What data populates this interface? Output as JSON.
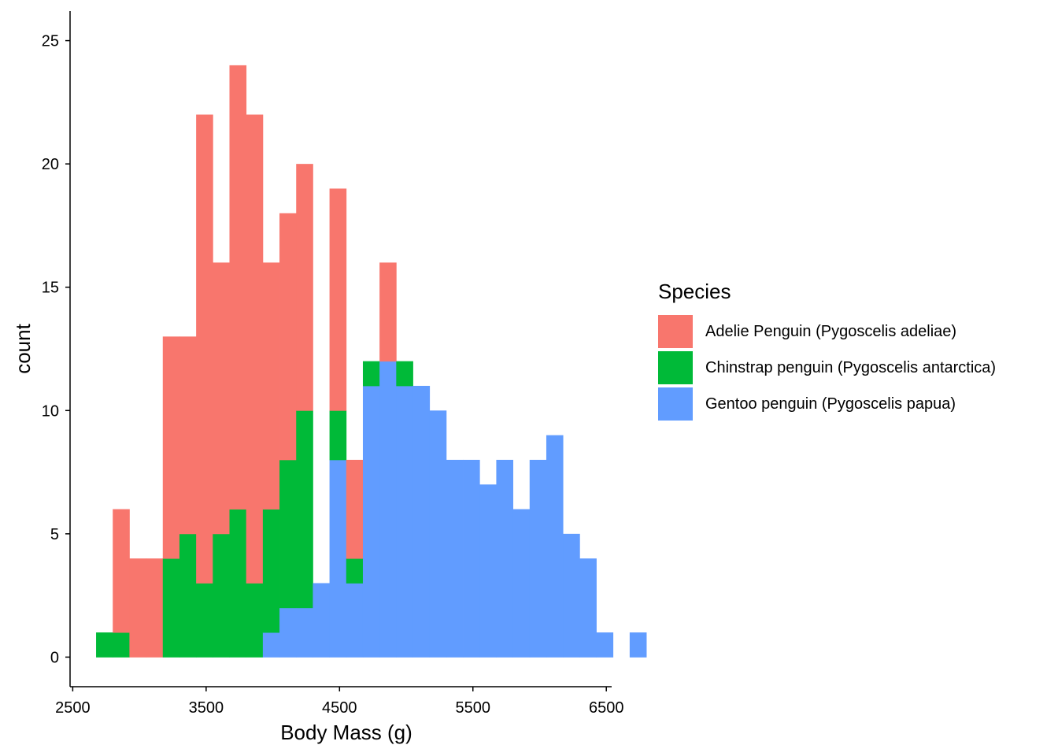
{
  "chart_data": {
    "type": "bar",
    "subtype": "stacked-histogram",
    "xlabel": "Body Mass (g)",
    "ylabel": "count",
    "xlim": [
      2480,
      6540
    ],
    "ylim": [
      -1.2,
      26.2
    ],
    "xticks": [
      2500,
      3500,
      4500,
      5500,
      6500
    ],
    "yticks": [
      0,
      5,
      10,
      15,
      20,
      25
    ],
    "grid": false,
    "legend": {
      "title": "Species",
      "position": "right"
    },
    "bin_start": 2675,
    "bin_width": 125,
    "series": [
      {
        "name": "Gentoo penguin (Pygoscelis papua)",
        "color": "#619CFF",
        "values": [
          0,
          0,
          0,
          0,
          0,
          0,
          0,
          0,
          0,
          0,
          1,
          2,
          2,
          3,
          8,
          3,
          11,
          12,
          11,
          11,
          10,
          8,
          8,
          7,
          8,
          6,
          8,
          9,
          5,
          4,
          1,
          0,
          1
        ]
      },
      {
        "name": "Chinstrap penguin (Pygoscelis antarctica)",
        "color": "#00BA38",
        "values": [
          1,
          1,
          0,
          0,
          4,
          5,
          3,
          5,
          6,
          3,
          5,
          6,
          8,
          0,
          2,
          1,
          1,
          0,
          1,
          0,
          0,
          0,
          0,
          0,
          0,
          0,
          0,
          0,
          0,
          0,
          0,
          0,
          0
        ]
      },
      {
        "name": "Adelie Penguin (Pygoscelis adeliae)",
        "color": "#F8766D",
        "values": [
          0,
          5,
          4,
          4,
          9,
          8,
          19,
          11,
          18,
          19,
          10,
          10,
          10,
          0,
          9,
          4,
          0,
          4,
          0,
          0,
          0,
          0,
          0,
          0,
          0,
          0,
          0,
          0,
          0,
          0,
          0,
          0,
          0
        ]
      }
    ]
  }
}
